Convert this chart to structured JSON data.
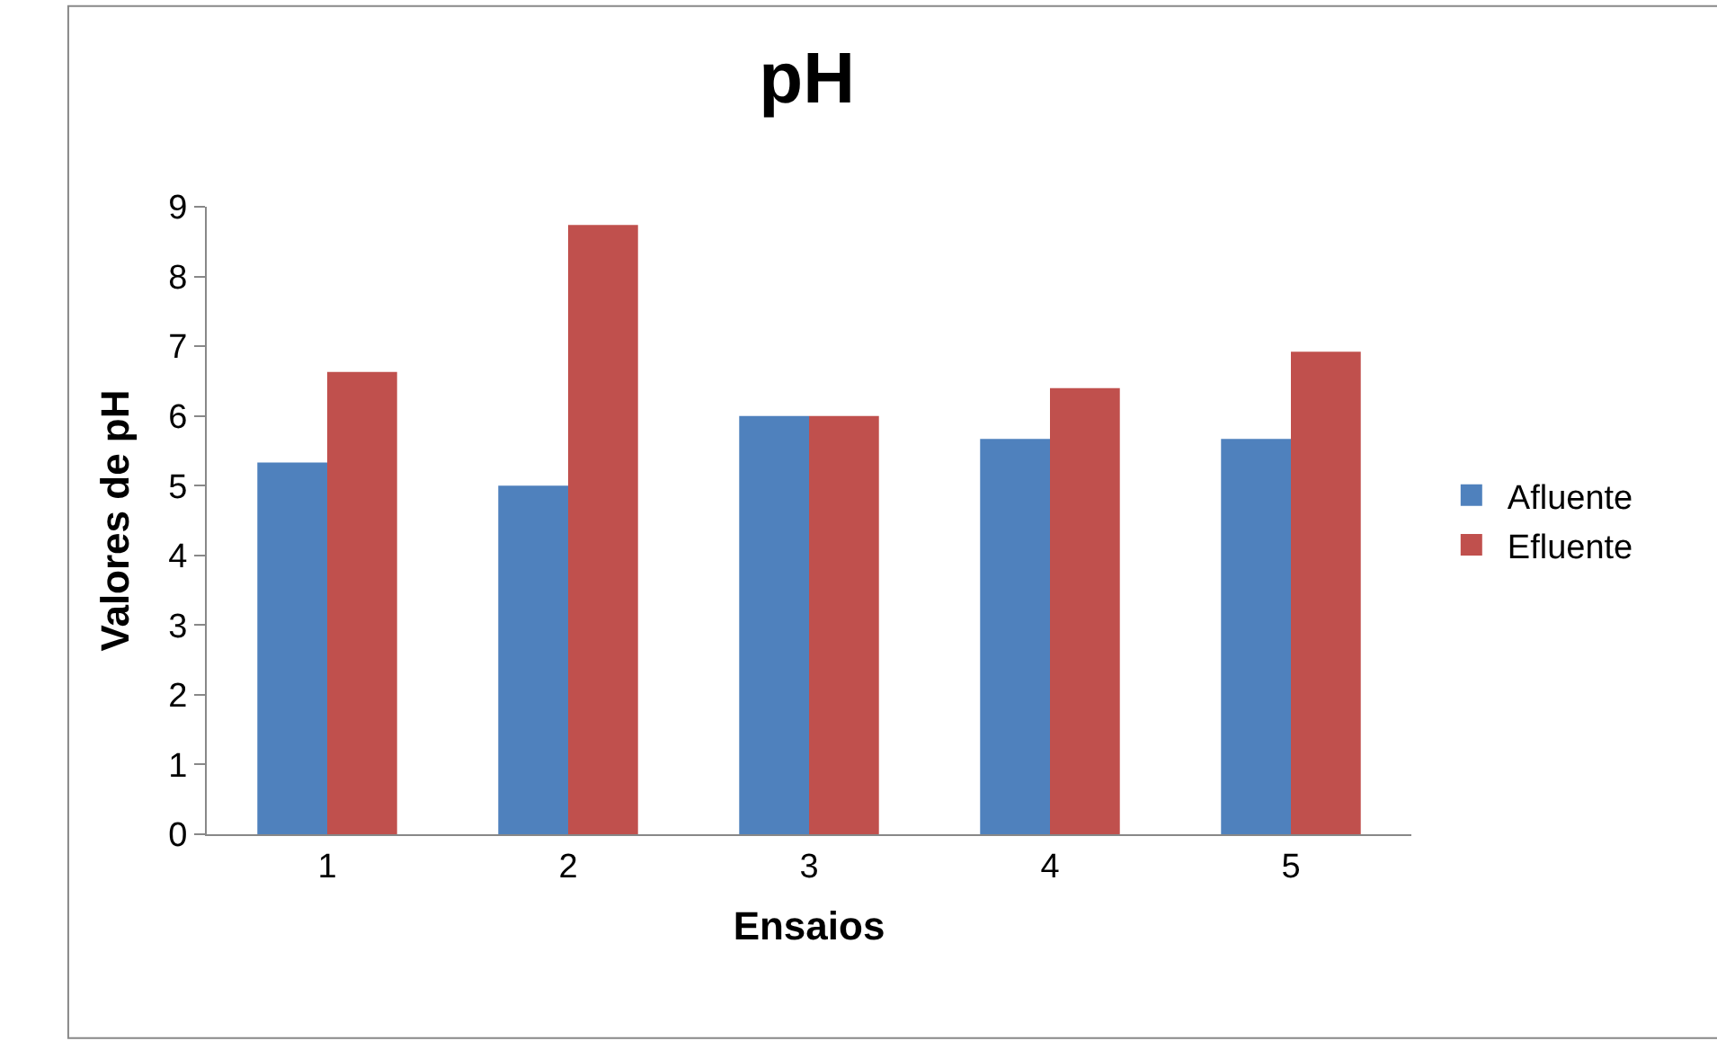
{
  "chart_data": {
    "type": "bar",
    "title": "pH",
    "xlabel": "Ensaios",
    "ylabel": "Valores de pH",
    "categories": [
      "1",
      "2",
      "3",
      "4",
      "5"
    ],
    "series": [
      {
        "name": "Afluente",
        "color": "#4f81bd",
        "values": [
          5.33,
          5.0,
          6.0,
          5.67,
          5.67
        ]
      },
      {
        "name": "Efluente",
        "color": "#c0504d",
        "values": [
          6.63,
          8.74,
          6.0,
          6.4,
          6.92
        ]
      }
    ],
    "ylim": [
      0,
      9
    ],
    "yticks": [
      0,
      1,
      2,
      3,
      4,
      5,
      6,
      7,
      8,
      9
    ],
    "grid": false,
    "legend": "right"
  }
}
